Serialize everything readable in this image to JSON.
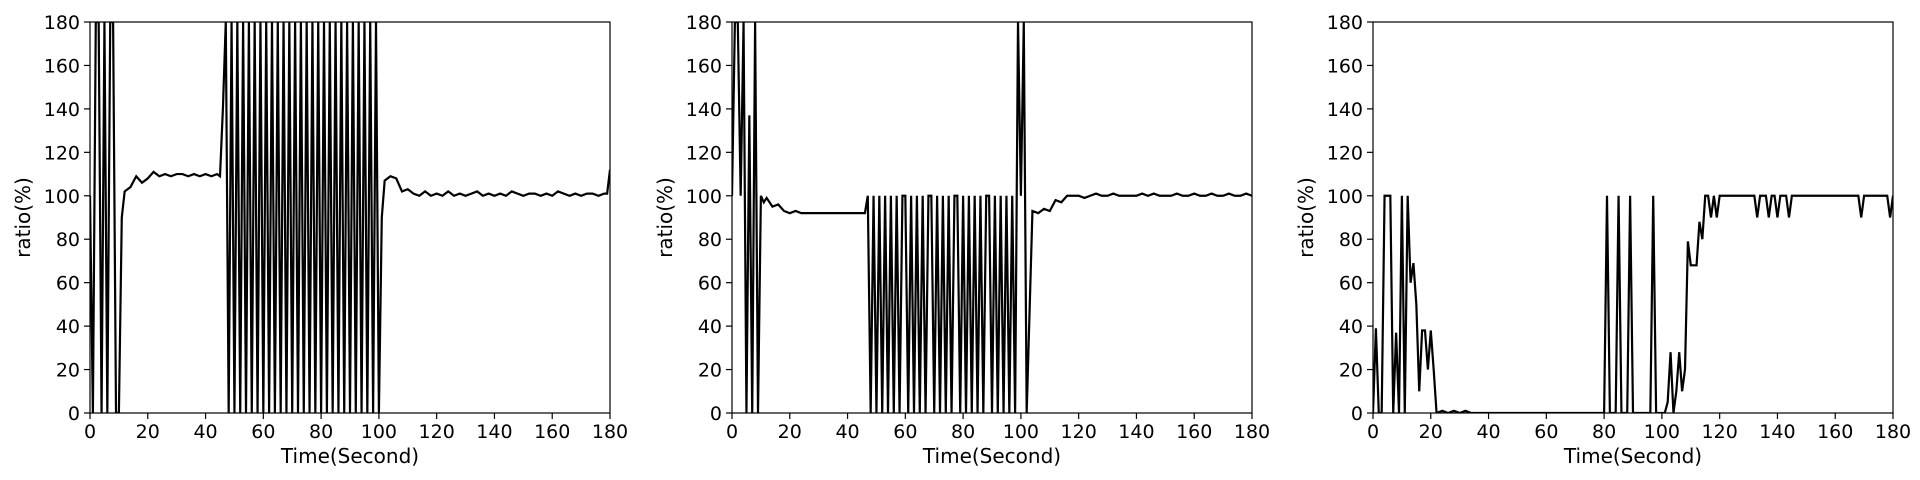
{
  "chart_data": [
    {
      "type": "line",
      "xlabel": "Time(Second)",
      "ylabel": "ratio(%)",
      "xlim": [
        0,
        180
      ],
      "ylim": [
        0,
        180
      ],
      "xticks": [
        0,
        20,
        40,
        60,
        80,
        100,
        120,
        140,
        160,
        180
      ],
      "yticks": [
        0,
        20,
        40,
        60,
        80,
        100,
        120,
        140,
        160,
        180
      ],
      "grid": false,
      "line_color": "#000000",
      "series": [
        {
          "x": [
            0,
            1,
            2,
            3,
            4,
            5,
            6,
            7,
            8,
            9,
            10,
            11,
            12,
            14,
            16,
            18,
            20,
            22,
            24,
            26,
            28,
            30,
            32,
            34,
            36,
            38,
            40,
            42,
            44,
            45,
            46,
            47,
            48,
            49,
            50,
            51,
            52,
            53,
            54,
            55,
            56,
            57,
            58,
            59,
            60,
            61,
            62,
            63,
            64,
            65,
            66,
            67,
            68,
            69,
            70,
            71,
            72,
            73,
            74,
            75,
            76,
            77,
            78,
            79,
            80,
            81,
            82,
            83,
            84,
            85,
            86,
            87,
            88,
            89,
            90,
            91,
            92,
            93,
            94,
            95,
            96,
            97,
            98,
            99,
            100,
            101,
            102,
            104,
            106,
            108,
            110,
            112,
            114,
            116,
            118,
            120,
            122,
            124,
            126,
            128,
            130,
            132,
            134,
            136,
            138,
            140,
            142,
            144,
            146,
            148,
            150,
            152,
            154,
            156,
            158,
            160,
            162,
            164,
            166,
            168,
            170,
            172,
            174,
            176,
            178,
            179,
            180
          ],
          "y": [
            100,
            0,
            180,
            180,
            0,
            180,
            0,
            180,
            180,
            0,
            0,
            90,
            102,
            104,
            109,
            106,
            108,
            111,
            109,
            110,
            109,
            110,
            110,
            109,
            110,
            109,
            110,
            109,
            110,
            109,
            140,
            180,
            0,
            180,
            0,
            180,
            0,
            180,
            0,
            180,
            0,
            180,
            0,
            180,
            0,
            180,
            0,
            180,
            0,
            180,
            0,
            180,
            0,
            180,
            0,
            180,
            0,
            180,
            0,
            180,
            0,
            180,
            0,
            180,
            0,
            180,
            0,
            180,
            0,
            180,
            0,
            180,
            0,
            180,
            0,
            180,
            0,
            180,
            0,
            180,
            0,
            180,
            0,
            180,
            0,
            90,
            107,
            109,
            108,
            102,
            103,
            101,
            100,
            102,
            100,
            101,
            100,
            102,
            100,
            101,
            100,
            101,
            102,
            100,
            101,
            100,
            101,
            100,
            102,
            101,
            100,
            101,
            101,
            100,
            101,
            100,
            102,
            101,
            100,
            101,
            100,
            101,
            101,
            100,
            101,
            101,
            112
          ]
        }
      ]
    },
    {
      "type": "line",
      "xlabel": "Time(Second)",
      "ylabel": "ratio(%)",
      "xlim": [
        0,
        180
      ],
      "ylim": [
        0,
        180
      ],
      "xticks": [
        0,
        20,
        40,
        60,
        80,
        100,
        120,
        140,
        160,
        180
      ],
      "yticks": [
        0,
        20,
        40,
        60,
        80,
        100,
        120,
        140,
        160,
        180
      ],
      "grid": false,
      "line_color": "#000000",
      "series": [
        {
          "x": [
            0,
            1,
            2,
            3,
            4,
            5,
            6,
            7,
            8,
            9,
            10,
            11,
            12,
            14,
            16,
            18,
            20,
            22,
            24,
            26,
            28,
            30,
            32,
            34,
            36,
            38,
            40,
            42,
            44,
            46,
            47,
            48,
            49,
            50,
            51,
            52,
            53,
            54,
            55,
            56,
            57,
            58,
            59,
            60,
            61,
            62,
            63,
            64,
            65,
            66,
            67,
            68,
            69,
            70,
            71,
            72,
            73,
            74,
            75,
            76,
            77,
            78,
            79,
            80,
            81,
            82,
            83,
            84,
            85,
            86,
            87,
            88,
            89,
            90,
            91,
            92,
            93,
            94,
            95,
            96,
            97,
            98,
            99,
            100,
            101,
            102,
            104,
            106,
            108,
            110,
            112,
            114,
            116,
            118,
            120,
            122,
            124,
            126,
            128,
            130,
            132,
            134,
            136,
            138,
            140,
            142,
            144,
            146,
            148,
            150,
            152,
            154,
            156,
            158,
            160,
            162,
            164,
            166,
            168,
            170,
            172,
            174,
            176,
            178,
            180
          ],
          "y": [
            100,
            180,
            180,
            100,
            180,
            0,
            137,
            0,
            180,
            0,
            100,
            97,
            99,
            95,
            96,
            93,
            92,
            93,
            92,
            92,
            92,
            92,
            92,
            92,
            92,
            92,
            92,
            92,
            92,
            92,
            100,
            0,
            100,
            0,
            100,
            0,
            100,
            0,
            100,
            0,
            100,
            0,
            100,
            100,
            0,
            100,
            0,
            100,
            0,
            100,
            0,
            100,
            100,
            0,
            100,
            0,
            100,
            0,
            100,
            0,
            100,
            100,
            0,
            100,
            0,
            100,
            0,
            100,
            0,
            100,
            0,
            100,
            100,
            0,
            100,
            0,
            100,
            0,
            100,
            0,
            100,
            0,
            180,
            100,
            180,
            0,
            93,
            92,
            94,
            93,
            98,
            97,
            100,
            100,
            100,
            99,
            100,
            101,
            100,
            100,
            101,
            100,
            100,
            100,
            100,
            101,
            100,
            101,
            100,
            100,
            100,
            101,
            100,
            100,
            101,
            100,
            100,
            101,
            100,
            100,
            101,
            100,
            100,
            101,
            100
          ]
        }
      ]
    },
    {
      "type": "line",
      "xlabel": "Time(Second)",
      "ylabel": "ratio(%)",
      "xlim": [
        0,
        180
      ],
      "ylim": [
        0,
        180
      ],
      "xticks": [
        0,
        20,
        40,
        60,
        80,
        100,
        120,
        140,
        160,
        180
      ],
      "yticks": [
        0,
        20,
        40,
        60,
        80,
        100,
        120,
        140,
        160,
        180
      ],
      "grid": false,
      "line_color": "#000000",
      "series": [
        {
          "x": [
            0,
            1,
            2,
            3,
            4,
            5,
            6,
            7,
            8,
            9,
            10,
            11,
            12,
            13,
            14,
            15,
            16,
            17,
            18,
            19,
            20,
            21,
            22,
            24,
            26,
            28,
            30,
            32,
            34,
            40,
            50,
            60,
            70,
            80,
            81,
            82,
            83,
            84,
            85,
            86,
            87,
            88,
            89,
            90,
            91,
            92,
            93,
            94,
            95,
            96,
            97,
            98,
            99,
            100,
            101,
            102,
            103,
            104,
            105,
            106,
            107,
            108,
            109,
            110,
            111,
            112,
            113,
            114,
            115,
            116,
            117,
            118,
            119,
            120,
            122,
            124,
            126,
            128,
            130,
            132,
            133,
            134,
            136,
            137,
            138,
            139,
            140,
            141,
            142,
            143,
            144,
            145,
            146,
            148,
            150,
            155,
            160,
            165,
            168,
            169,
            170,
            175,
            177,
            178,
            179,
            180
          ],
          "y": [
            0,
            39,
            0,
            0,
            100,
            100,
            100,
            0,
            37,
            0,
            100,
            0,
            100,
            60,
            69,
            50,
            10,
            38,
            38,
            20,
            38,
            20,
            0,
            1,
            0,
            1,
            0,
            1,
            0,
            0,
            0,
            0,
            0,
            0,
            100,
            0,
            0,
            0,
            100,
            0,
            0,
            0,
            100,
            0,
            0,
            0,
            0,
            0,
            0,
            0,
            100,
            0,
            0,
            0,
            0,
            5,
            28,
            0,
            10,
            28,
            10,
            20,
            79,
            68,
            68,
            68,
            88,
            80,
            100,
            100,
            90,
            100,
            90,
            100,
            100,
            100,
            100,
            100,
            100,
            100,
            90,
            100,
            100,
            90,
            100,
            100,
            90,
            100,
            100,
            100,
            90,
            100,
            100,
            100,
            100,
            100,
            100,
            100,
            100,
            90,
            100,
            100,
            100,
            100,
            90,
            100
          ]
        }
      ]
    }
  ]
}
